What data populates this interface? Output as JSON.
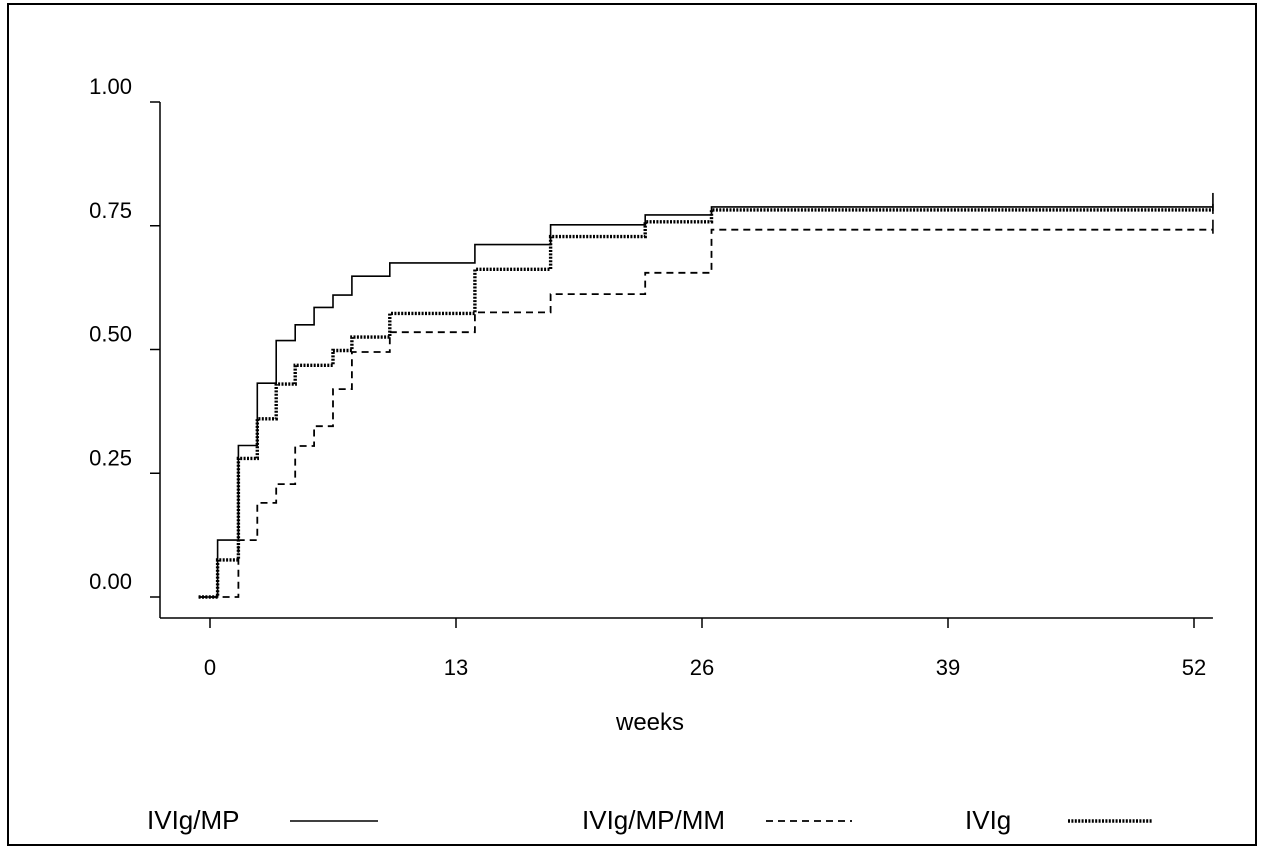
{
  "chart_data": {
    "type": "line",
    "step": true,
    "xlabel": "weeks",
    "ylabel": "",
    "xlim": [
      0,
      53
    ],
    "ylim": [
      0,
      1
    ],
    "xticks": [
      {
        "value": 0,
        "label": "0"
      },
      {
        "value": 13,
        "label": "13"
      },
      {
        "value": 26,
        "label": "26"
      },
      {
        "value": 39,
        "label": "39"
      },
      {
        "value": 52,
        "label": "52"
      }
    ],
    "yticks": [
      {
        "value": 0,
        "label": "0.00"
      },
      {
        "value": 0.25,
        "label": "0.25"
      },
      {
        "value": 0.5,
        "label": "0.50"
      },
      {
        "value": 0.75,
        "label": "0.75"
      },
      {
        "value": 1.0,
        "label": "1.00"
      }
    ],
    "series": [
      {
        "name": "IVIg/MP",
        "style": "solid",
        "x": [
          -0.6,
          0.4,
          1.5,
          2.5,
          3.5,
          4.5,
          5.5,
          6.5,
          7.5,
          9.5,
          14.0,
          18.0,
          23.0,
          26.5,
          53.0
        ],
        "y": [
          0.0,
          0.115,
          0.306,
          0.432,
          0.518,
          0.55,
          0.585,
          0.61,
          0.648,
          0.675,
          0.712,
          0.752,
          0.772,
          0.788,
          0.788
        ]
      },
      {
        "name": "IVIg/MP/MM",
        "style": "dashed",
        "x": [
          -0.6,
          1.5,
          2.5,
          3.5,
          4.5,
          5.5,
          6.5,
          7.5,
          9.5,
          14.0,
          18.0,
          23.0,
          26.5,
          53.0
        ],
        "y": [
          0.0,
          0.115,
          0.19,
          0.228,
          0.305,
          0.345,
          0.42,
          0.495,
          0.535,
          0.575,
          0.612,
          0.655,
          0.742,
          0.742
        ]
      },
      {
        "name": "IVIg",
        "style": "dotted",
        "x": [
          -0.6,
          0.4,
          1.5,
          2.5,
          3.5,
          4.5,
          6.5,
          7.5,
          9.5,
          14.0,
          18.0,
          23.0,
          26.5,
          53.0
        ],
        "y": [
          0.0,
          0.075,
          0.28,
          0.36,
          0.43,
          0.468,
          0.498,
          0.525,
          0.573,
          0.662,
          0.728,
          0.758,
          0.782,
          0.782
        ]
      }
    ],
    "legend": {
      "placement": "bottom",
      "entries": [
        {
          "label": "IVIg/MP",
          "style": "solid"
        },
        {
          "label": "IVIg/MP/MM",
          "style": "dashed"
        },
        {
          "label": "IVIg",
          "style": "dotted"
        }
      ]
    },
    "grid": false
  }
}
